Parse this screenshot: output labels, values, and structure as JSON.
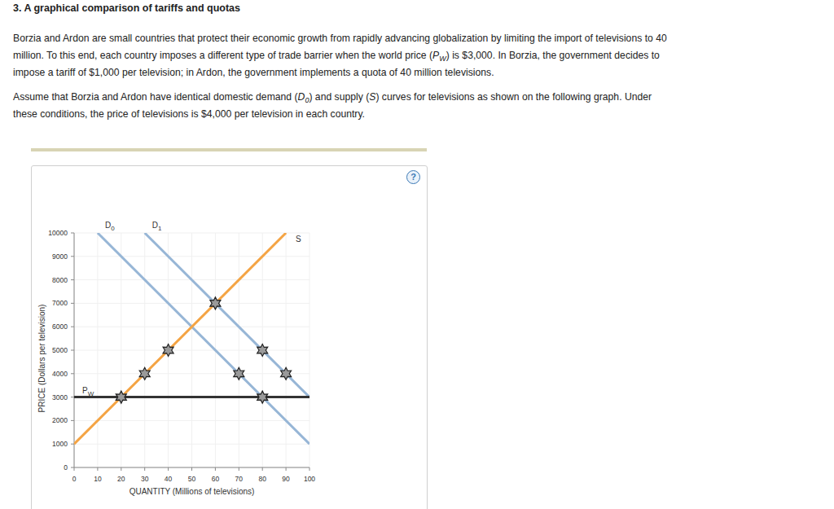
{
  "header": {
    "title": "3. A graphical comparison of tariffs and quotas"
  },
  "paragraphs": [
    [
      [
        {
          "text": "Borzia and Ardon are small countries that protect their economic growth from rapidly advancing globalization by limiting the import of televisions to 40",
          "style": "normal"
        }
      ],
      [
        {
          "text": "million. To this end, each country imposes a different type of trade barrier when the world price (",
          "style": "normal"
        },
        {
          "text": "P",
          "style": "italic"
        },
        {
          "text": "W",
          "style": "sub"
        },
        {
          "text": ") is $3,000. In Borzia, the government decides to",
          "style": "normal"
        }
      ],
      [
        {
          "text": "impose a tariff of $1,000 per television; in Ardon, the government implements a quota of 40 million televisions.",
          "style": "normal"
        }
      ]
    ],
    [
      [
        {
          "text": "Assume that Borzia and Ardon have identical domestic demand (",
          "style": "normal"
        },
        {
          "text": "D",
          "style": "italic"
        },
        {
          "text": "0",
          "style": "sub"
        },
        {
          "text": ") and supply (",
          "style": "normal"
        },
        {
          "text": "S",
          "style": "italic"
        },
        {
          "text": ") curves for televisions as shown on the following graph. Under",
          "style": "normal"
        }
      ],
      [
        {
          "text": "these conditions, the price of televisions is $4,000 per television in each country.",
          "style": "normal"
        }
      ]
    ]
  ],
  "help": "?",
  "chart_data": {
    "type": "line",
    "x_label": "QUANTITY (Millions of televisions)",
    "y_label": "PRICE (Dollars per television)",
    "xlim": [
      0,
      100
    ],
    "ylim": [
      0,
      10000
    ],
    "xticks": [
      0,
      10,
      20,
      30,
      40,
      50,
      60,
      70,
      80,
      90,
      100
    ],
    "yticks": [
      0,
      1000,
      2000,
      3000,
      4000,
      5000,
      6000,
      7000,
      8000,
      9000,
      10000
    ],
    "grid": true,
    "series": [
      {
        "name": "D0",
        "type": "line",
        "color": "#97b6d6",
        "x": [
          10,
          100
        ],
        "values": [
          10000,
          1000
        ]
      },
      {
        "name": "D1",
        "type": "line",
        "color": "#97b6d6",
        "x": [
          30,
          100
        ],
        "values": [
          10000,
          3000
        ]
      },
      {
        "name": "S",
        "type": "line",
        "color": "#f4a444",
        "x": [
          0,
          90
        ],
        "values": [
          1000,
          10000
        ]
      },
      {
        "name": "PW",
        "type": "line",
        "color": "#333333",
        "x": [
          0,
          100
        ],
        "values": [
          3000,
          3000
        ]
      },
      {
        "type": "scatter",
        "marker": "star",
        "color": "#9a9a9a",
        "x": [
          20,
          30,
          40,
          60,
          70,
          80,
          80,
          90
        ],
        "values": [
          3000,
          4000,
          5000,
          7000,
          4000,
          3000,
          5000,
          4000
        ]
      }
    ]
  }
}
